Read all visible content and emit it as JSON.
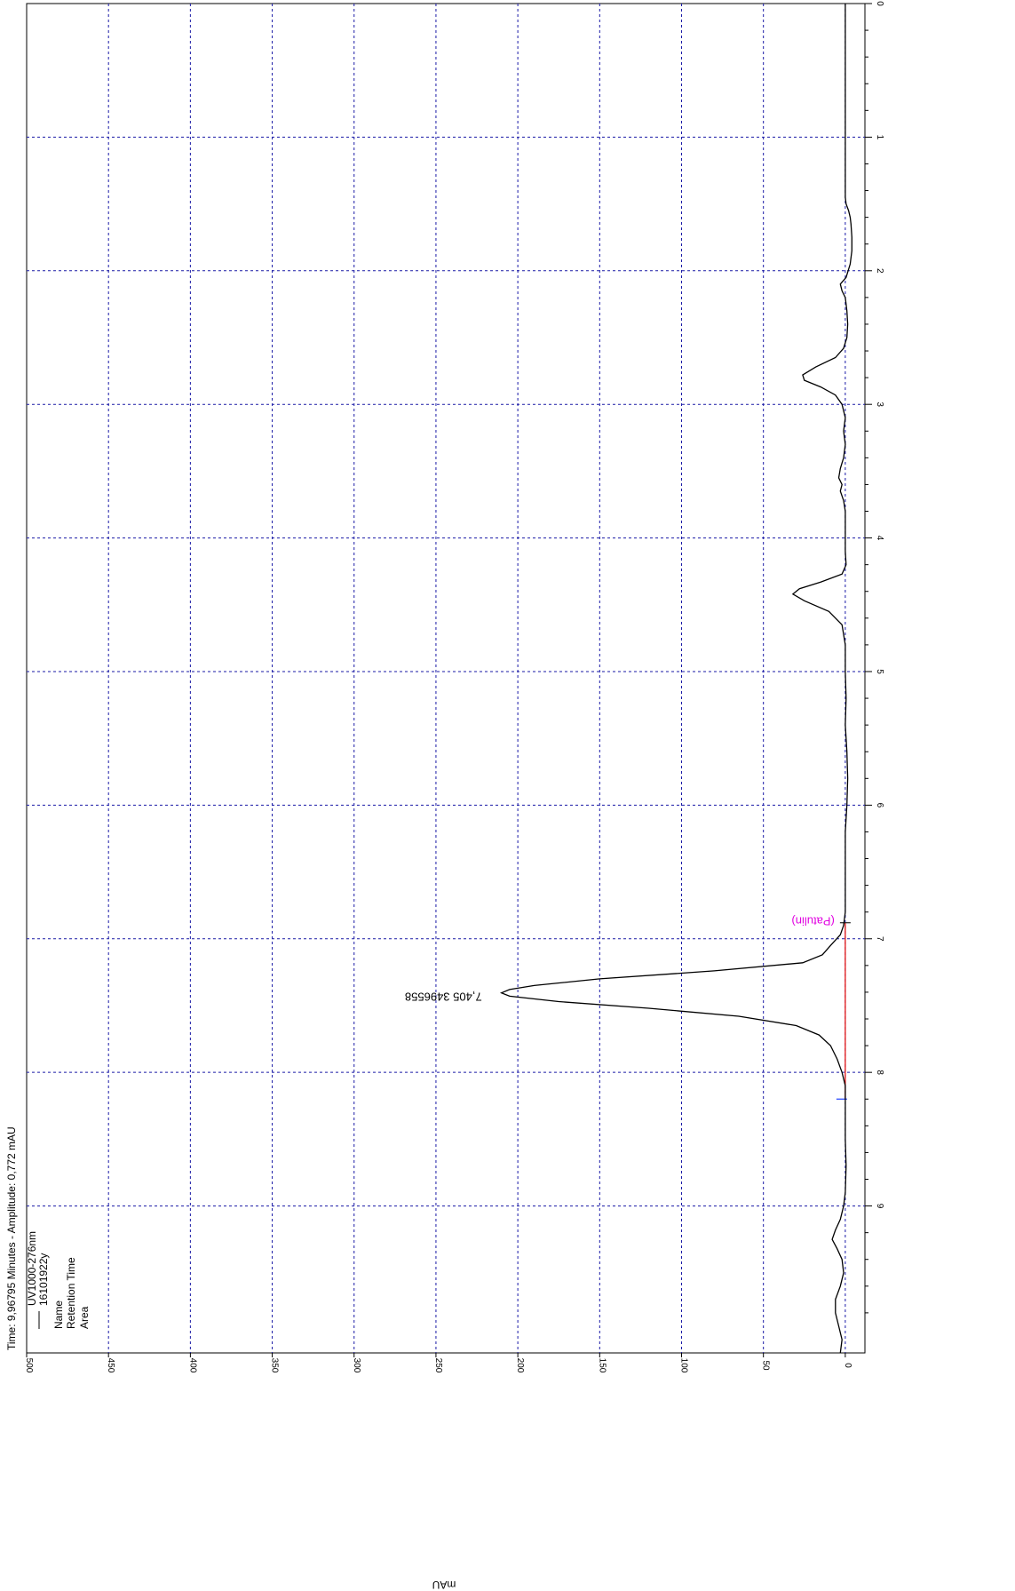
{
  "header": {
    "status_line": "Time:  9,96795 Minutes - Amplitude:  0,772 mAU",
    "legend_series": "UV1000-276nm",
    "legend_sample": "16101922y",
    "legend_fields": [
      "Name",
      "Retention Time",
      "Area"
    ]
  },
  "colors": {
    "trace": "#000000",
    "grid": "#1a1aa6",
    "baseline": "#e00000",
    "marker_start": "#222222",
    "marker_end": "#2040ff",
    "compound_label": "#e000e0"
  },
  "chart_data": {
    "type": "line",
    "orientation": "rotated-90-clockwise",
    "xlabel": "",
    "ylabel": "mAU",
    "xlim": [
      0,
      10.1
    ],
    "ylim": [
      -12,
      500
    ],
    "x_ticks": [
      "0",
      "1",
      "2",
      "3",
      "4",
      "5",
      "6",
      "7",
      "8",
      "9"
    ],
    "y_ticks": [
      "0",
      "50",
      "100",
      "150",
      "200",
      "250",
      "300",
      "350",
      "400",
      "450",
      "500"
    ],
    "grid": true,
    "series": [
      {
        "name": "UV1000-276nm",
        "x": [
          0,
          0.5,
          1.0,
          1.45,
          1.5,
          1.55,
          1.6,
          1.65,
          1.75,
          1.85,
          1.95,
          2.05,
          2.1,
          2.15,
          2.2,
          2.3,
          2.4,
          2.5,
          2.58,
          2.65,
          2.72,
          2.78,
          2.82,
          2.87,
          2.93,
          3.0,
          3.1,
          3.2,
          3.3,
          3.4,
          3.48,
          3.55,
          3.6,
          3.65,
          3.72,
          3.8,
          3.9,
          4.0,
          4.1,
          4.2,
          4.27,
          4.33,
          4.38,
          4.42,
          4.47,
          4.55,
          4.65,
          4.8,
          5.0,
          5.2,
          5.4,
          5.6,
          5.8,
          6.0,
          6.2,
          6.5,
          6.8,
          6.9,
          6.97,
          7.05,
          7.12,
          7.18,
          7.24,
          7.3,
          7.35,
          7.38,
          7.405,
          7.43,
          7.47,
          7.52,
          7.58,
          7.65,
          7.72,
          7.8,
          7.9,
          8.0,
          8.1,
          8.2,
          8.35,
          8.5,
          8.7,
          8.9,
          9.0,
          9.1,
          9.18,
          9.25,
          9.32,
          9.4,
          9.5,
          9.6,
          9.7,
          9.8,
          9.9,
          10.0,
          10.1
        ],
        "y": [
          0,
          0,
          0,
          0,
          -0.5,
          -2,
          -3,
          -3.5,
          -4,
          -4,
          -3,
          -0.5,
          3,
          2,
          0,
          -1,
          -1.5,
          -1,
          1,
          6,
          18,
          26,
          25,
          15,
          6,
          2,
          0,
          1,
          0,
          1,
          3,
          4,
          2,
          3,
          1,
          0,
          0,
          0,
          0,
          -0.5,
          2,
          15,
          28,
          32,
          25,
          10,
          2,
          0,
          0,
          -0.5,
          0,
          -1,
          -1.5,
          -1,
          0,
          0,
          0,
          1,
          3,
          9,
          14,
          26,
          80,
          150,
          190,
          205,
          210,
          205,
          175,
          120,
          65,
          30,
          16,
          9,
          5,
          2,
          0,
          0,
          0,
          0,
          -0.5,
          0,
          1,
          3,
          6,
          8,
          5,
          2,
          1,
          3,
          6,
          6,
          4,
          2,
          3
        ]
      }
    ],
    "peak_annotation": {
      "x": 7.405,
      "y": 210,
      "label": "7,405 3496558"
    },
    "compound_label": "(Patulin)",
    "integration": {
      "start": 6.88,
      "end": 8.2
    }
  }
}
